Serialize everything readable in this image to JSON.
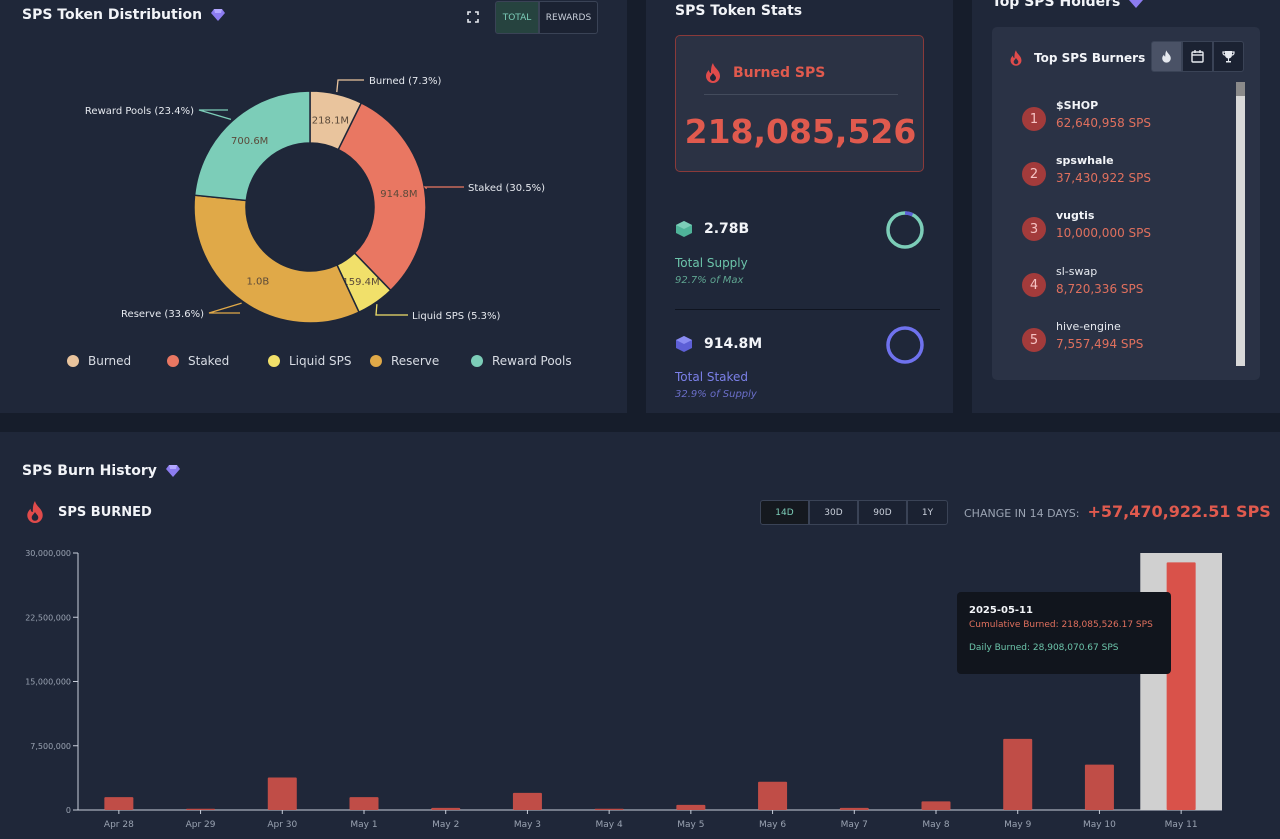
{
  "distribution": {
    "title": "SPS Token Distribution",
    "toggle": [
      "TOTAL",
      "REWARDS"
    ],
    "slices": [
      {
        "name": "Burned",
        "label": "Burned (7.3%)",
        "value_label": "218.1M",
        "pct": 7.3,
        "color": "#e9c49d"
      },
      {
        "name": "Staked",
        "label": "Staked (30.5%)",
        "value_label": "914.8M",
        "pct": 30.5,
        "color": "#e97762"
      },
      {
        "name": "Liquid SPS",
        "label": "Liquid SPS (5.3%)",
        "value_label": "159.4M",
        "pct": 5.3,
        "color": "#f1e06a"
      },
      {
        "name": "Reserve",
        "label": "Reserve (33.6%)",
        "value_label": "1.0B",
        "pct": 33.6,
        "color": "#e0a948"
      },
      {
        "name": "Reward Pools",
        "label": "Reward Pools (23.4%)",
        "value_label": "700.6M",
        "pct": 23.4,
        "color": "#7ccdb8"
      }
    ]
  },
  "stats": {
    "title": "SPS Token Stats",
    "burned_title": "Burned SPS",
    "burned_value": "218,085,526",
    "supply_value": "2.78B",
    "supply_label": "Total Supply",
    "supply_sub": "92.7% of Max",
    "supply_pct": 92.7,
    "staked_value": "914.8M",
    "staked_label": "Total Staked",
    "staked_sub": "32.9% of Supply",
    "staked_pct": 32.9
  },
  "holders": {
    "title": "Top SPS Holders",
    "subtitle": "Top SPS Burners",
    "items": [
      {
        "rank": "1",
        "name": "$SHOP",
        "amount": "62,640,958 SPS"
      },
      {
        "rank": "2",
        "name": "spswhale",
        "amount": "37,430,922 SPS"
      },
      {
        "rank": "3",
        "name": "vugtis",
        "amount": "10,000,000 SPS"
      },
      {
        "rank": "4",
        "name": "sl-swap",
        "amount": "8,720,336 SPS"
      },
      {
        "rank": "5",
        "name": "hive-engine",
        "amount": "7,557,494 SPS"
      }
    ]
  },
  "history": {
    "title": "SPS Burn History",
    "subtitle": "SPS BURNED",
    "ranges": [
      "14D",
      "30D",
      "90D",
      "1Y"
    ],
    "change_label": "CHANGE IN 14 DAYS:",
    "change_value": "+57,470,922.51 SPS",
    "tooltip": {
      "date": "2025-05-11",
      "cumulative": "Cumulative Burned: 218,085,526.17 SPS",
      "daily": "Daily Burned: 28,908,070.67 SPS"
    }
  },
  "chart_data": {
    "type": "bar",
    "categories": [
      "Apr 28",
      "Apr 29",
      "Apr 30",
      "May 1",
      "May 2",
      "May 3",
      "May 4",
      "May 5",
      "May 6",
      "May 7",
      "May 8",
      "May 9",
      "May 10",
      "May 11"
    ],
    "values": [
      1500000,
      150000,
      3800000,
      1500000,
      250000,
      2000000,
      150000,
      600000,
      3300000,
      250000,
      1000000,
      8300000,
      5300000,
      28908070.67
    ],
    "yticks": [
      "0",
      "7,500,000",
      "15,000,000",
      "22,500,000",
      "30,000,000"
    ],
    "ylim": [
      0,
      30000000
    ],
    "highlight_index": 13
  }
}
